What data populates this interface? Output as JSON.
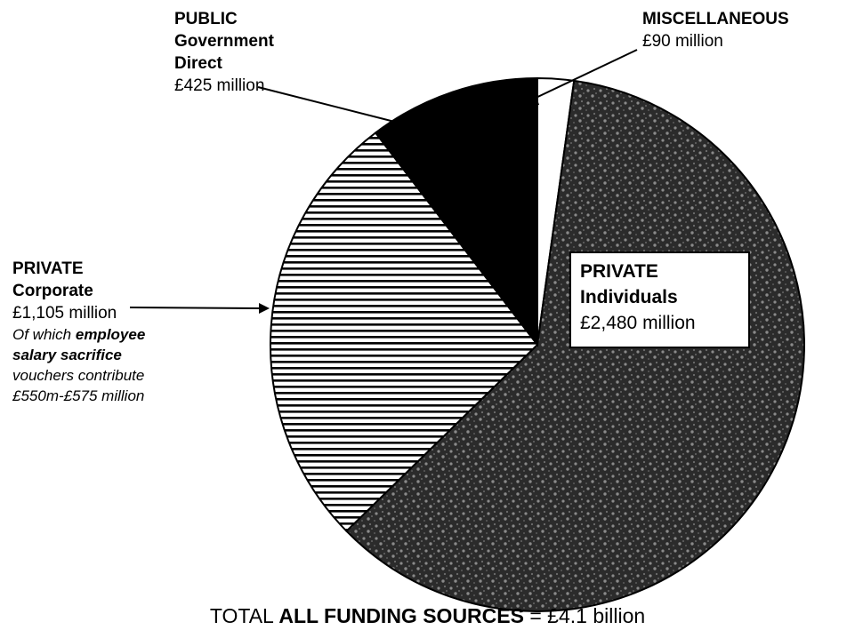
{
  "chart_data": {
    "type": "pie",
    "unit": "£ million",
    "slices": [
      {
        "label": "MISCELLANEOUS",
        "value": 90,
        "pattern": "white"
      },
      {
        "label": "PRIVATE Individuals",
        "value": 2480,
        "pattern": "dark-stipple"
      },
      {
        "label": "PRIVATE Corporate",
        "value": 1105,
        "pattern": "horizontal-stripes"
      },
      {
        "label": "PUBLIC Government Direct",
        "value": 425,
        "pattern": "black"
      }
    ],
    "colors": {
      "black": "#000000",
      "white": "#ffffff",
      "stipple_dark": "#2b2b2b",
      "stipple_light": "#8a8a8a"
    }
  },
  "labels": {
    "public": {
      "line1": "PUBLIC",
      "line2": "Government",
      "line3": "Direct",
      "value": "£425 million"
    },
    "misc": {
      "line1": "MISCELLANEOUS",
      "value": "£90 million"
    },
    "corporate": {
      "line1": "PRIVATE",
      "line2": "Corporate",
      "value": "£1,105 million",
      "note_a": "Of which ",
      "note_b": "employee",
      "note_c": "salary sacrifice",
      "note_d": "vouchers contribute",
      "note_e": "£550m-£575 million"
    },
    "individuals": {
      "line1": "PRIVATE",
      "line2": "Individuals",
      "value": "£2,480 million"
    }
  },
  "total": {
    "prefix": "TOTAL ",
    "bold": "ALL FUNDING SOURCES",
    "suffix": " = £4.1 billion"
  }
}
